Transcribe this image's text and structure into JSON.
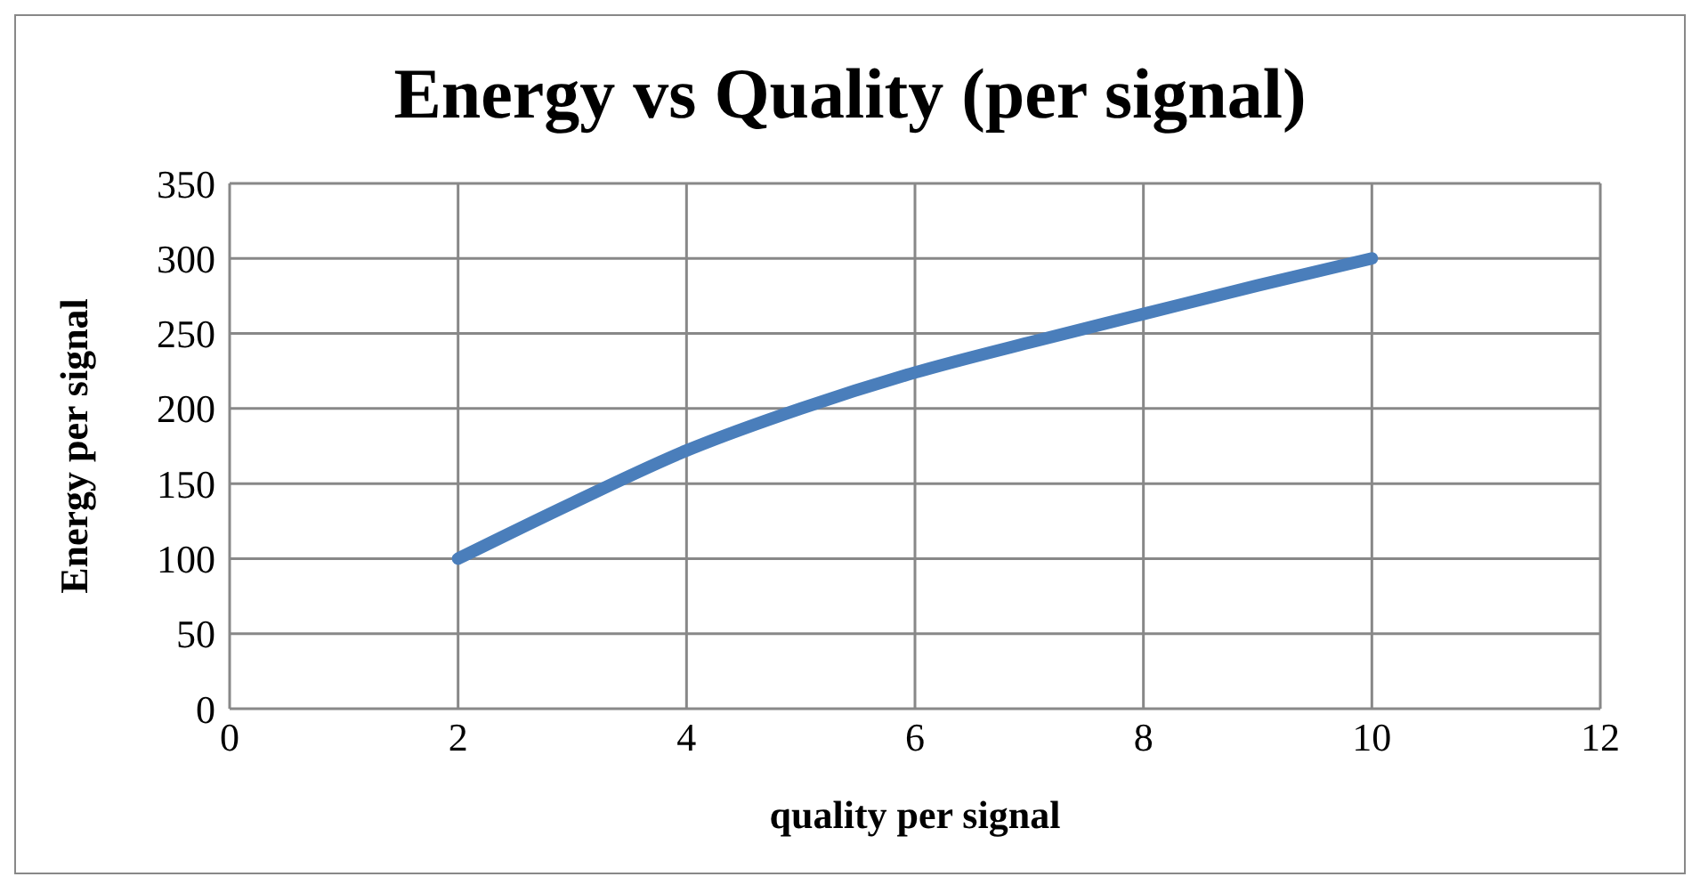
{
  "chart_data": {
    "type": "line",
    "title": "Energy vs Quality (per signal)",
    "xlabel": "quality per signal",
    "ylabel": "Energy per signal",
    "x": [
      2,
      3,
      4,
      5,
      6,
      7,
      8,
      9,
      10
    ],
    "series": [
      {
        "color": "#4a7ebb",
        "values": [
          100,
          137,
          172,
          200,
          224,
          244,
          263,
          282,
          300
        ]
      }
    ],
    "xlim": [
      0,
      12
    ],
    "xticks": [
      0,
      2,
      4,
      6,
      8,
      10,
      12
    ],
    "ylim": [
      0,
      350
    ],
    "yticks": [
      0,
      50,
      100,
      150,
      200,
      250,
      300,
      350
    ],
    "grid": true,
    "marker": "none",
    "line_style": "solid"
  }
}
